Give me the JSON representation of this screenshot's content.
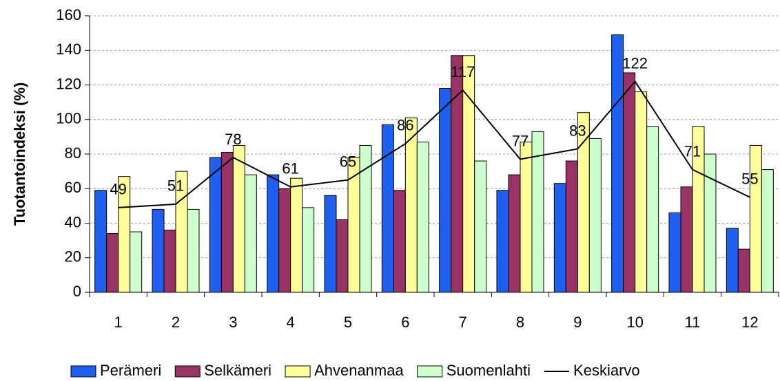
{
  "chart_data": {
    "type": "bar",
    "y_label": "Tuotantoindeksi (%)",
    "categories": [
      "1",
      "2",
      "3",
      "4",
      "5",
      "6",
      "7",
      "8",
      "9",
      "10",
      "11",
      "12"
    ],
    "series": [
      {
        "name": "Perämeri",
        "color": "#2060f0",
        "values": [
          59,
          48,
          78,
          68,
          56,
          97,
          118,
          59,
          63,
          149,
          46,
          37
        ]
      },
      {
        "name": "Selkämeri",
        "color": "#993366",
        "values": [
          34,
          36,
          81,
          60,
          42,
          59,
          137,
          68,
          76,
          127,
          61,
          25
        ]
      },
      {
        "name": "Ahvenanmaa",
        "color": "#ffff99",
        "values": [
          67,
          70,
          85,
          66,
          78,
          101,
          137,
          87,
          104,
          116,
          96,
          85
        ]
      },
      {
        "name": "Suomenlahti",
        "color": "#ccffcc",
        "values": [
          35,
          48,
          68,
          49,
          85,
          87,
          76,
          93,
          89,
          96,
          80,
          71
        ]
      },
      {
        "name": "Keskiarvo",
        "type": "line",
        "color": "#000000",
        "values": [
          49,
          51,
          78,
          61,
          65,
          86,
          117,
          77,
          83,
          122,
          71,
          55
        ]
      }
    ],
    "ylim": [
      0,
      160
    ],
    "yticks": [
      0,
      20,
      40,
      60,
      80,
      100,
      120,
      140,
      160
    ],
    "grid": true
  }
}
